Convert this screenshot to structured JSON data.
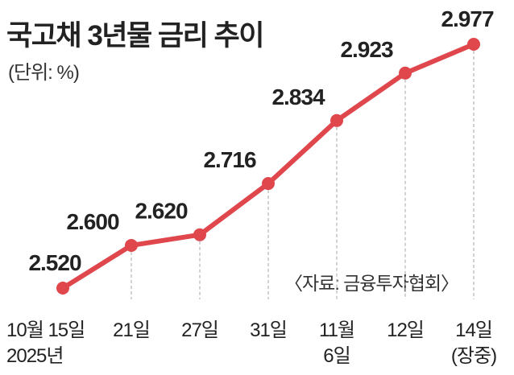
{
  "header": {
    "title": "국고채 3년물 금리 추이",
    "unit": "(단위: %)"
  },
  "source": "〈자료: 금융투자협회〉",
  "chart_data": {
    "type": "line",
    "title": "국고채 3년물 금리 추이",
    "unit": "%",
    "categories": [
      "10월 15일",
      "21일",
      "27일",
      "31일",
      "11월 6일",
      "12일",
      "14일 (장중)"
    ],
    "tick_labels": [
      [
        "10월 15일",
        "2025년"
      ],
      [
        "21일"
      ],
      [
        "27일"
      ],
      [
        "31일"
      ],
      [
        "11월",
        "6일"
      ],
      [
        "12일"
      ],
      [
        "14일",
        "(장중)"
      ]
    ],
    "data_labels": [
      "2.520",
      "2.600",
      "2.620",
      "2.716",
      "2.834",
      "2.923",
      "2.977"
    ],
    "series": [
      {
        "values": [
          2.52,
          2.6,
          2.62,
          2.716,
          2.834,
          2.923,
          2.977
        ]
      }
    ],
    "line_color": "#e0474c",
    "highlight_color": "#e0474c",
    "guide_color": "#bbbbbb",
    "text_color": "#222222",
    "grid": false,
    "legend": "none"
  }
}
